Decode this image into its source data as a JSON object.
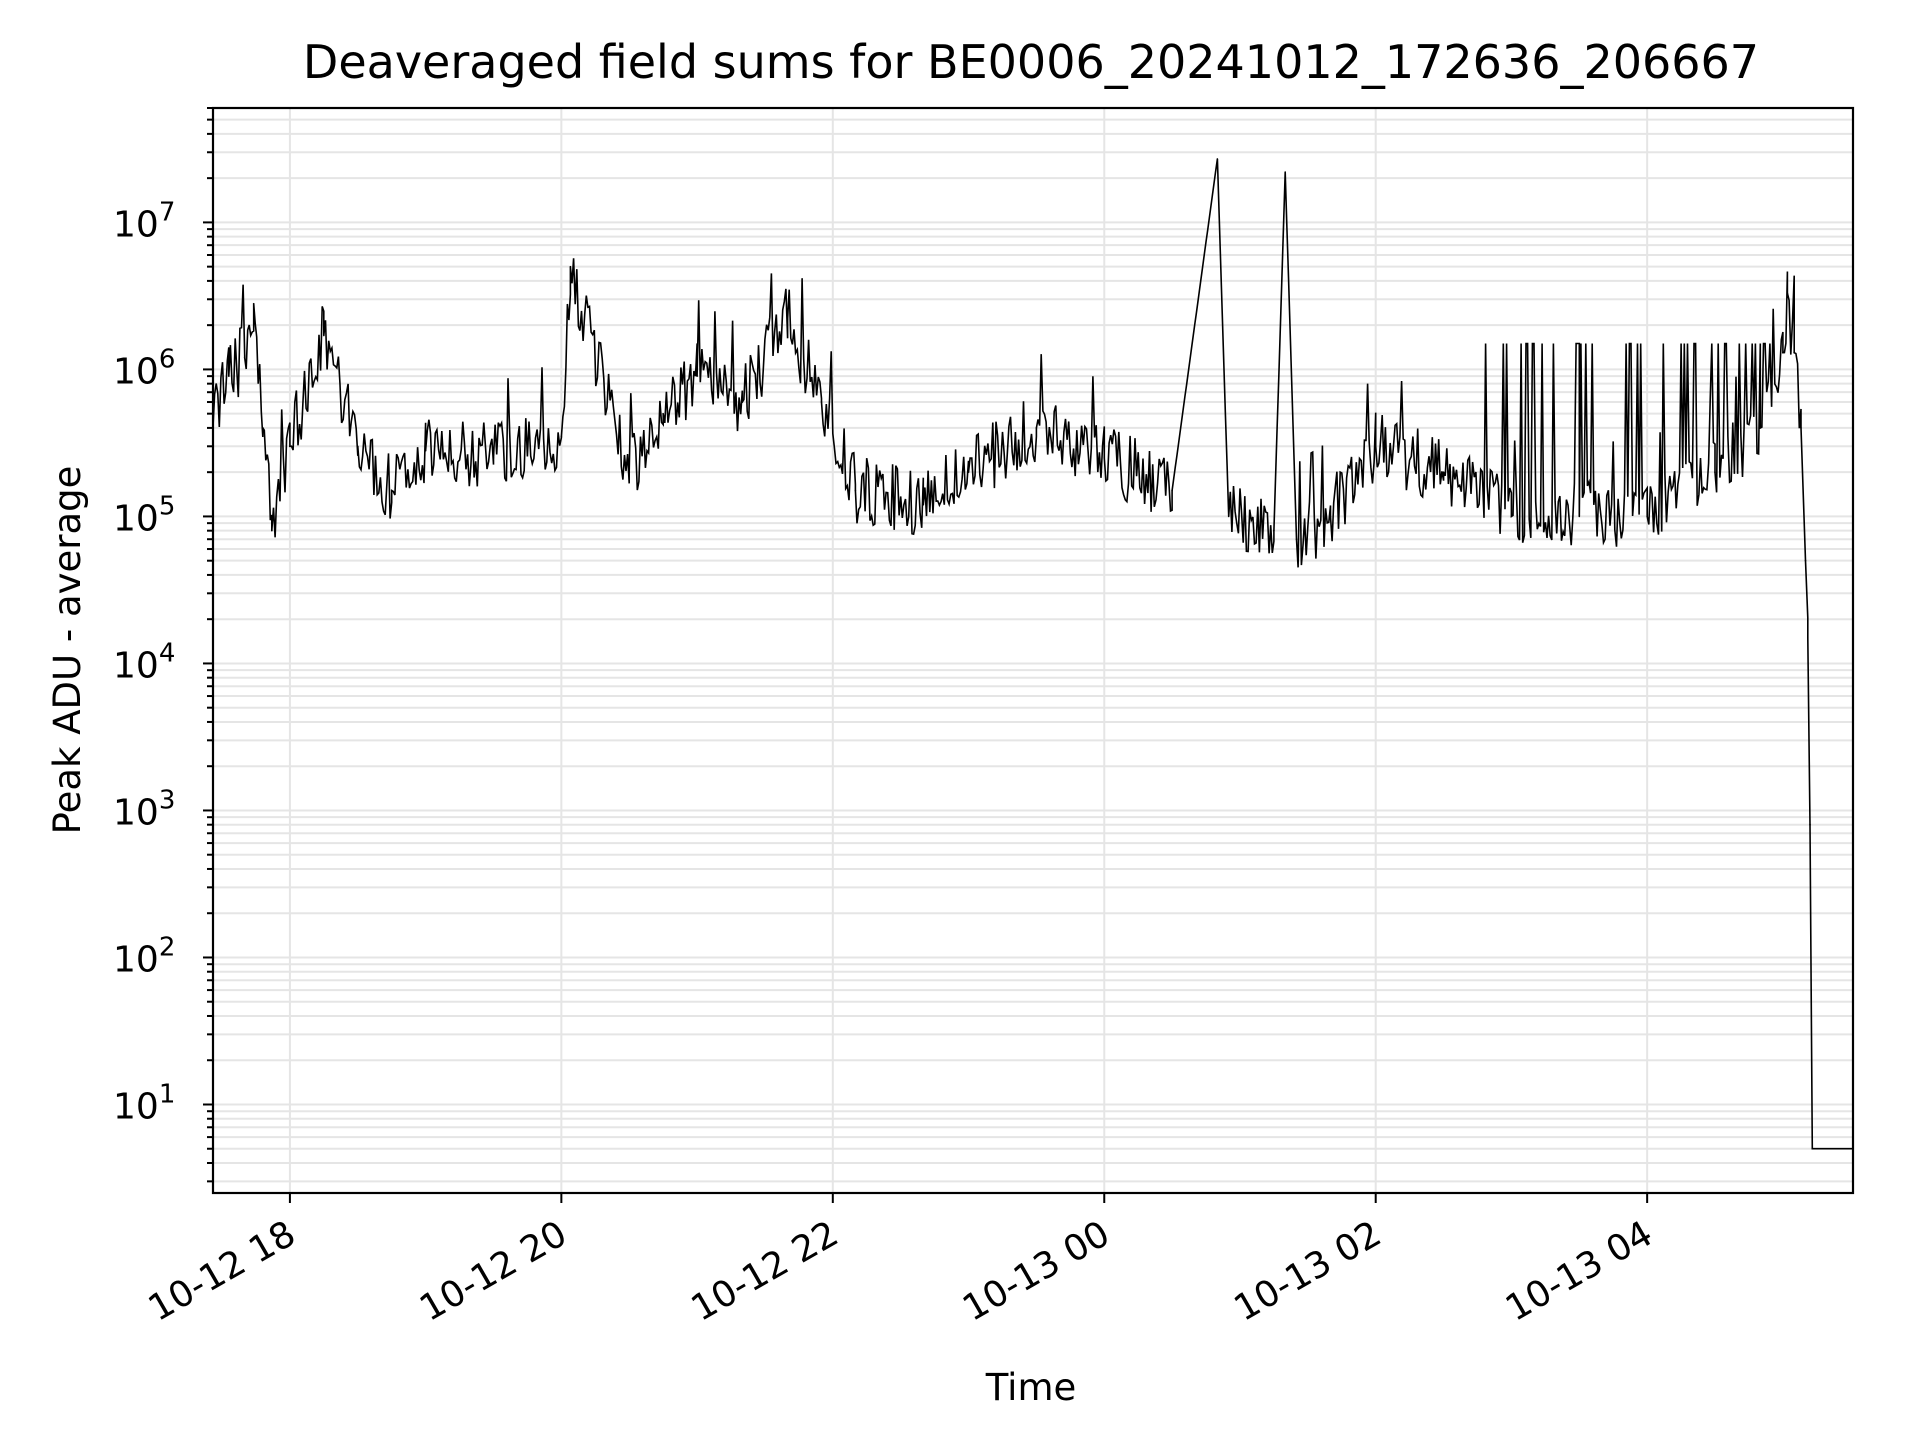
{
  "chart_data": {
    "type": "line",
    "title": "Deaveraged field sums for BE0006_20241012_172636_206667",
    "xlabel": "Time",
    "ylabel": "Peak ADU - average",
    "yscale": "log",
    "ylim": [
      2.5,
      60000000
    ],
    "xlim": [
      "2024-10-12T17:26",
      "2024-10-13T05:31"
    ],
    "grid": true,
    "line_color": "#000000",
    "grid_color": "#e5e5e5",
    "x_ticks": [
      {
        "t": "2024-10-12T18:00",
        "label": "10-12 18"
      },
      {
        "t": "2024-10-12T20:00",
        "label": "10-12 20"
      },
      {
        "t": "2024-10-12T22:00",
        "label": "10-12 22"
      },
      {
        "t": "2024-10-13T00:00",
        "label": "10-13 00"
      },
      {
        "t": "2024-10-13T02:00",
        "label": "10-13 02"
      },
      {
        "t": "2024-10-13T04:00",
        "label": "10-13 04"
      }
    ],
    "y_ticks": [
      {
        "value": 10,
        "base": "10",
        "exp": "1"
      },
      {
        "value": 100,
        "base": "10",
        "exp": "2"
      },
      {
        "value": 1000,
        "base": "10",
        "exp": "3"
      },
      {
        "value": 10000,
        "base": "10",
        "exp": "4"
      },
      {
        "value": 100000,
        "base": "10",
        "exp": "5"
      },
      {
        "value": 1000000,
        "base": "10",
        "exp": "6"
      },
      {
        "value": 10000000,
        "base": "10",
        "exp": "7"
      }
    ],
    "series": [
      {
        "points": [
          [
            "2024-10-12T17:26",
            500000
          ],
          [
            "2024-10-12T17:33",
            900000
          ],
          [
            "2024-10-12T17:40",
            1200000
          ],
          [
            "2024-10-12T17:44",
            2800000
          ],
          [
            "2024-10-12T17:48",
            400000
          ],
          [
            "2024-10-12T17:52",
            80000
          ],
          [
            "2024-10-12T18:00",
            300000
          ],
          [
            "2024-10-12T18:15",
            1700000
          ],
          [
            "2024-10-12T18:30",
            300000
          ],
          [
            "2024-10-12T18:45",
            150000
          ],
          [
            "2024-10-12T19:00",
            280000
          ],
          [
            "2024-10-12T19:30",
            250000
          ],
          [
            "2024-10-12T20:00",
            350000
          ],
          [
            "2024-10-12T20:04",
            5000000
          ],
          [
            "2024-10-12T20:30",
            200000
          ],
          [
            "2024-10-12T20:45",
            500000
          ],
          [
            "2024-10-12T21:00",
            900000
          ],
          [
            "2024-10-12T21:20",
            600000
          ],
          [
            "2024-10-12T21:40",
            2200000
          ],
          [
            "2024-10-12T21:55",
            600000
          ],
          [
            "2024-10-12T22:10",
            150000
          ],
          [
            "2024-10-12T22:40",
            120000
          ],
          [
            "2024-10-12T23:00",
            200000
          ],
          [
            "2024-10-12T23:30",
            400000
          ],
          [
            "2024-10-13T00:00",
            250000
          ],
          [
            "2024-10-13T00:30",
            150000
          ],
          [
            "2024-10-13T00:50",
            27000000
          ],
          [
            "2024-10-13T00:55",
            100000
          ],
          [
            "2024-10-13T01:15",
            80000
          ],
          [
            "2024-10-13T01:20",
            22000000
          ],
          [
            "2024-10-13T01:25",
            70000
          ],
          [
            "2024-10-13T01:40",
            100000
          ],
          [
            "2024-10-13T02:00",
            300000
          ],
          [
            "2024-10-13T02:30",
            200000
          ],
          [
            "2024-10-13T03:00",
            100000
          ],
          [
            "2024-10-13T03:30",
            100000
          ],
          [
            "2024-10-13T04:00",
            100000
          ],
          [
            "2024-10-13T04:30",
            200000
          ],
          [
            "2024-10-13T04:50",
            400000
          ],
          [
            "2024-10-13T05:00",
            1300000
          ],
          [
            "2024-10-13T05:02",
            3300000
          ],
          [
            "2024-10-13T05:05",
            1300000
          ],
          [
            "2024-10-13T05:08",
            400000
          ],
          [
            "2024-10-13T05:10",
            50000
          ],
          [
            "2024-10-13T05:11",
            15000
          ],
          [
            "2024-10-13T05:12",
            800
          ],
          [
            "2024-10-13T05:13",
            5
          ],
          [
            "2024-10-13T05:31",
            5
          ]
        ]
      }
    ]
  }
}
